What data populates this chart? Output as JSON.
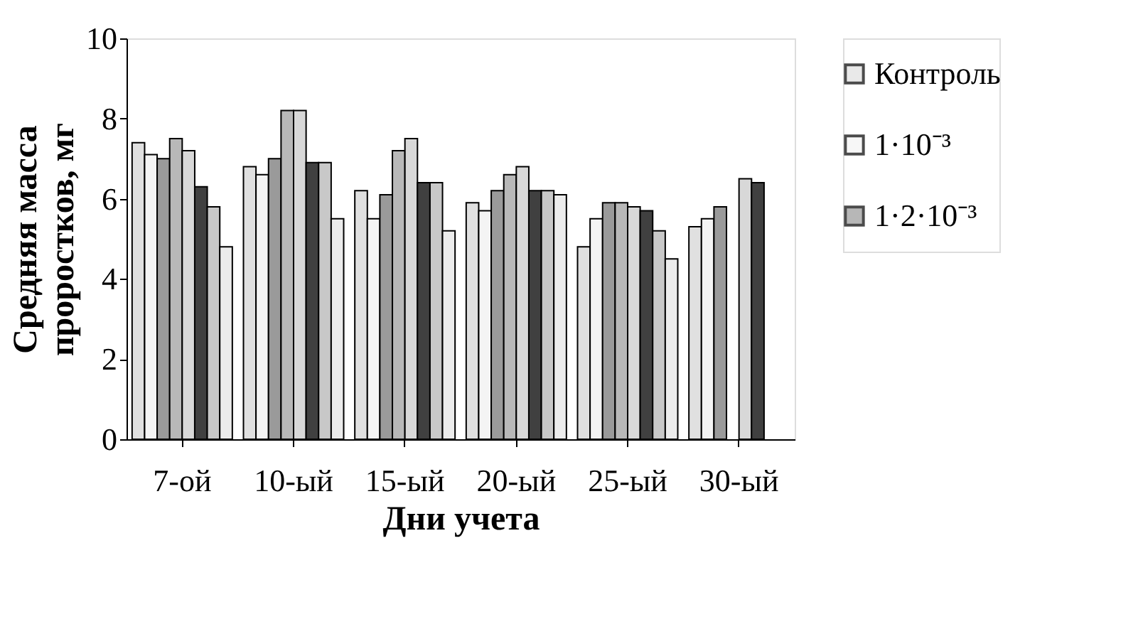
{
  "chart_data": {
    "type": "bar",
    "xlabel": "Дни учета",
    "ylabel": "Средняя масса проростков, мг",
    "categories": [
      "7-ой",
      "10-ый",
      "15-ый",
      "20-ый",
      "25-ый",
      "30-ый"
    ],
    "series": [
      {
        "name": "Контроль",
        "color": "#e0e0e0",
        "values": [
          7.4,
          6.8,
          6.2,
          5.9,
          4.8,
          5.3
        ]
      },
      {
        "name": "1·10⁻³",
        "color": "#f4f4f4",
        "values": [
          7.1,
          6.6,
          5.5,
          5.7,
          5.5,
          5.5
        ]
      },
      {
        "name": "1·2·10⁻³",
        "color": "#9a9a9a",
        "values": [
          7.0,
          7.0,
          6.1,
          6.2,
          5.9,
          5.8
        ]
      },
      {
        "color": "#b8b8b8",
        "values": [
          7.5,
          8.2,
          7.2,
          6.6,
          5.9,
          null
        ]
      },
      {
        "color": "#d8d8d8",
        "values": [
          7.2,
          8.2,
          7.5,
          6.8,
          5.8,
          6.5
        ]
      },
      {
        "color": "#404040",
        "values": [
          6.3,
          6.9,
          6.4,
          6.2,
          5.7,
          6.4
        ]
      },
      {
        "color": "#c8c8c8",
        "values": [
          5.8,
          6.9,
          6.4,
          6.2,
          5.2,
          null
        ]
      },
      {
        "color": "#ececec",
        "values": [
          4.8,
          5.5,
          5.2,
          6.1,
          4.5,
          null
        ]
      }
    ],
    "ylim": [
      0,
      10
    ],
    "yticks": [
      0,
      2,
      4,
      6,
      8,
      10
    ],
    "grid": false,
    "legend": "right"
  }
}
